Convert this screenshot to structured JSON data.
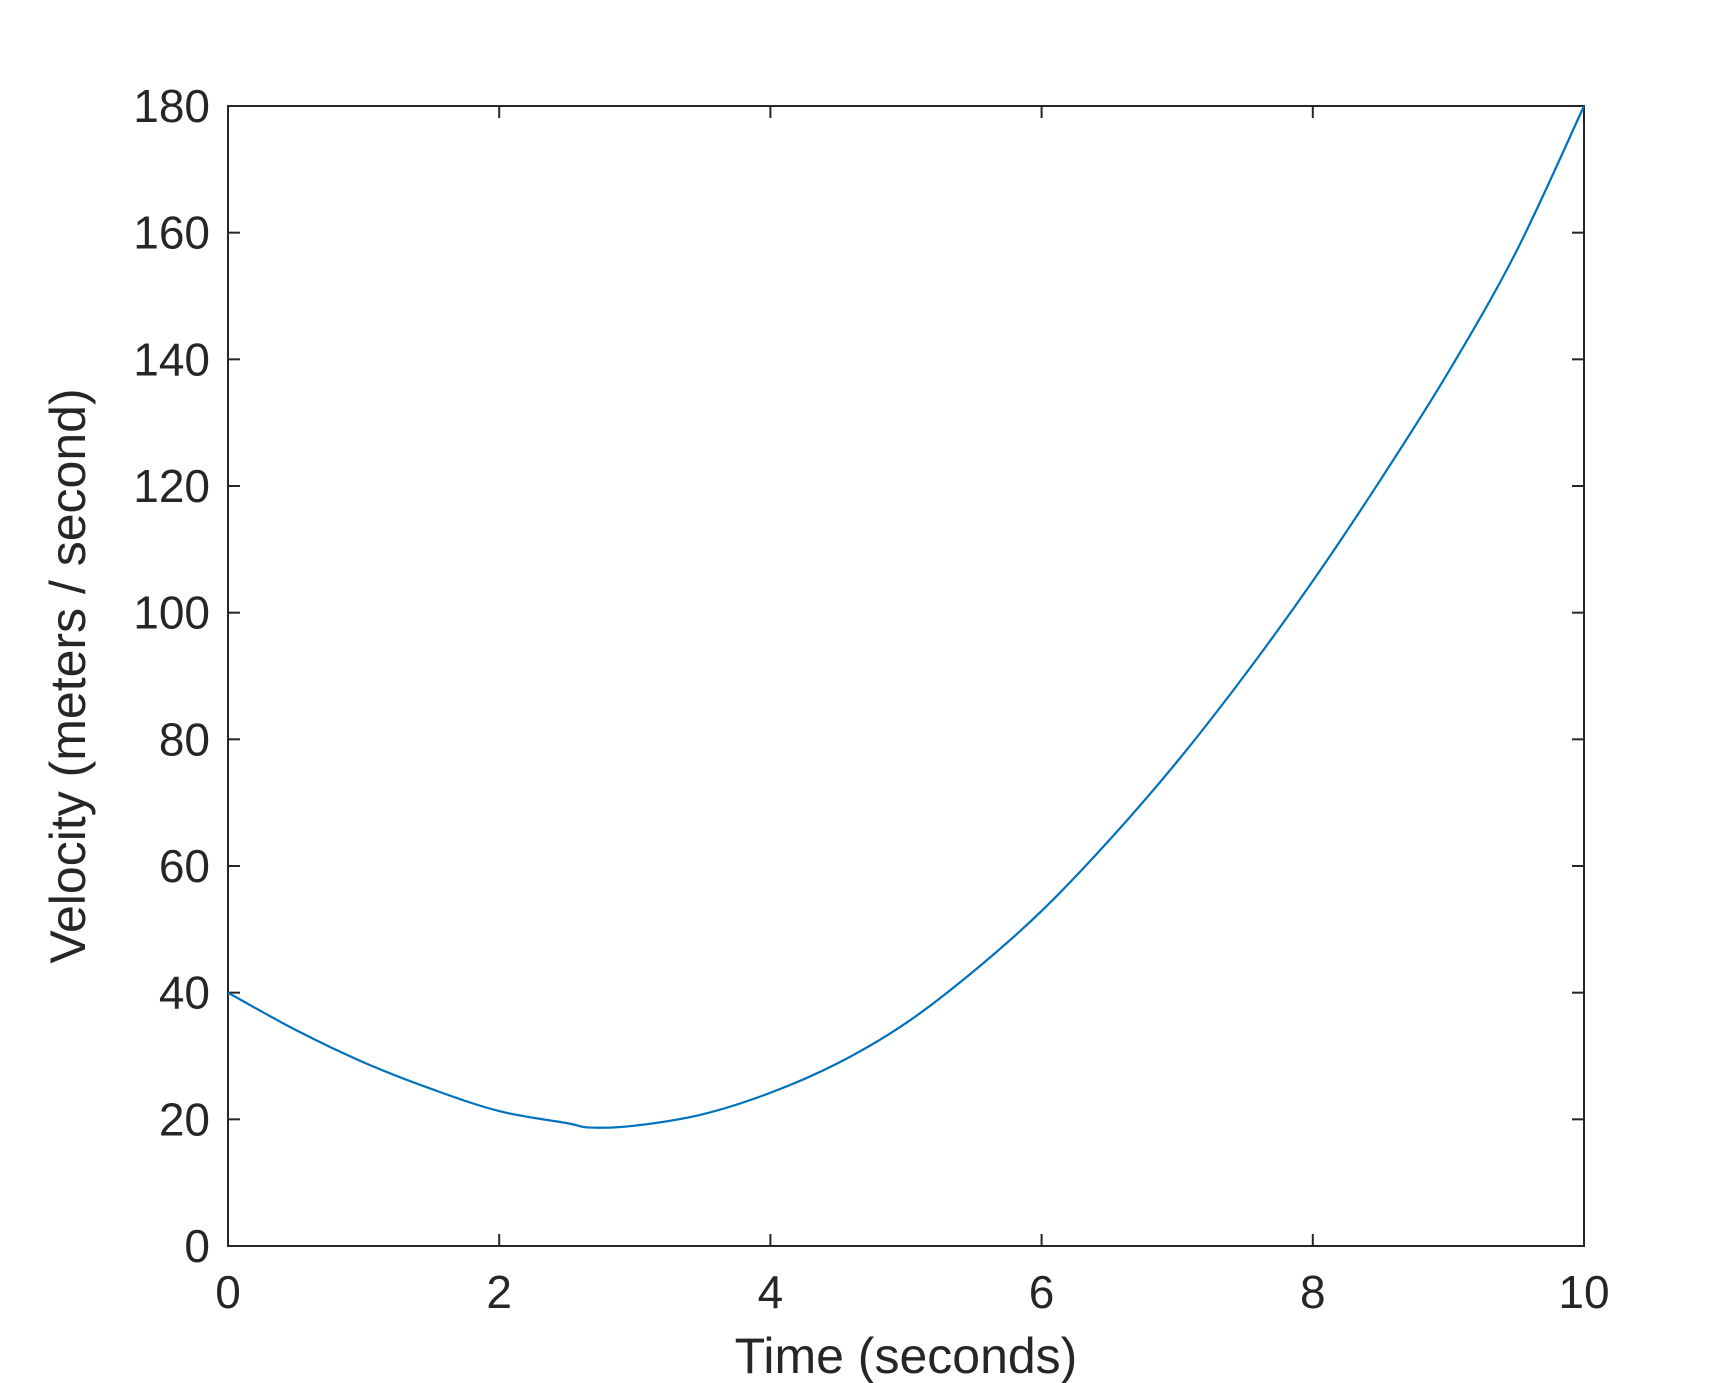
{
  "chart_data": {
    "type": "line",
    "title": "",
    "xlabel": "Time (seconds)",
    "ylabel": "Velocity (meters / second)",
    "xlim": [
      0,
      10
    ],
    "ylim": [
      0,
      180
    ],
    "xticks": [
      0,
      2,
      4,
      6,
      8,
      10
    ],
    "yticks": [
      0,
      20,
      40,
      60,
      80,
      100,
      120,
      140,
      160,
      180
    ],
    "xtick_labels": [
      "0",
      "2",
      "4",
      "6",
      "8",
      "10"
    ],
    "ytick_labels": [
      "0",
      "20",
      "40",
      "60",
      "80",
      "100",
      "120",
      "140",
      "160",
      "180"
    ],
    "grid": false,
    "box": true,
    "series": [
      {
        "color": "#0072BD",
        "x": [
          0,
          0.5,
          1,
          1.5,
          2,
          2.5,
          2.67,
          3,
          3.5,
          4,
          4.5,
          5,
          5.5,
          6,
          6.5,
          7,
          7.5,
          8,
          8.5,
          9,
          9.5,
          10
        ],
        "y": [
          40,
          34.1,
          29.0,
          24.8,
          21.3,
          19.4,
          18.7,
          19.0,
          20.8,
          24.2,
          28.9,
          35.2,
          43.4,
          52.9,
          64.1,
          76.5,
          90.2,
          105.0,
          121.0,
          138.0,
          157.0,
          180
        ]
      }
    ]
  }
}
